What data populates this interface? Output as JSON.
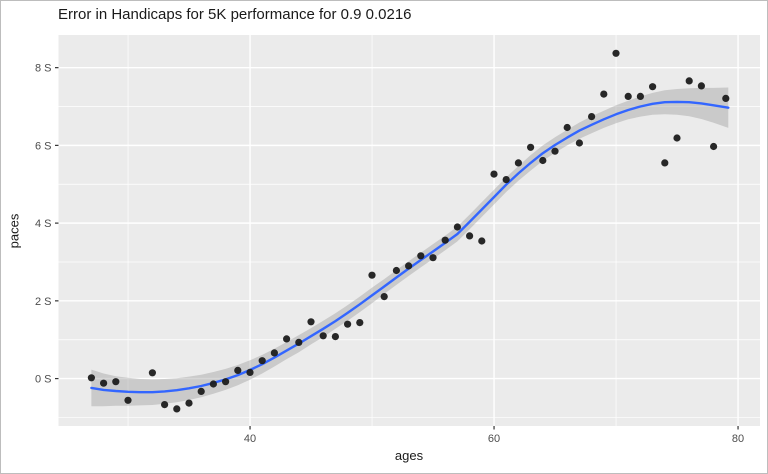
{
  "chart": {
    "title": "Error in Handicaps for 5K performance for 0.9 0.0216",
    "xlabel": "ages",
    "ylabel": "paces"
  },
  "chart_data": {
    "type": "scatter",
    "title": "Error in Handicaps for 5K performance for 0.9 0.0216",
    "xlabel": "ages",
    "ylabel": "paces",
    "grid": "on",
    "legend": "none",
    "x_domain": [
      24.3,
      81.8
    ],
    "y_domain": [
      -1.22,
      8.84
    ],
    "x_ticks": [
      {
        "value": 40,
        "label": "40"
      },
      {
        "value": 60,
        "label": "60"
      },
      {
        "value": 80,
        "label": "80"
      }
    ],
    "y_ticks": [
      {
        "value": 0,
        "label": "0 S"
      },
      {
        "value": 2,
        "label": "2 S"
      },
      {
        "value": 4,
        "label": "4 S"
      },
      {
        "value": 6,
        "label": "6 S"
      },
      {
        "value": 8,
        "label": "8 S"
      }
    ],
    "x_minor_gridlines": [
      30,
      50,
      70
    ],
    "y_minor_gridlines": [
      -1,
      1,
      3,
      5,
      7
    ],
    "points": {
      "ages": [
        27,
        28,
        29,
        30,
        32,
        33,
        34,
        35,
        36,
        37,
        38,
        39,
        40,
        41,
        42,
        43,
        44,
        45,
        46,
        47,
        48,
        49,
        50,
        51,
        52,
        53,
        54,
        55,
        56,
        57,
        58,
        59,
        60,
        61,
        62,
        63,
        64,
        65,
        66,
        67,
        68,
        69,
        70,
        71,
        72,
        73,
        74,
        75,
        76,
        77,
        78,
        79
      ],
      "values": [
        0.02,
        -0.12,
        -0.08,
        -0.56,
        0.15,
        -0.67,
        -0.78,
        -0.63,
        -0.33,
        -0.14,
        -0.08,
        0.21,
        0.16,
        0.46,
        0.66,
        1.02,
        0.93,
        1.46,
        1.1,
        1.08,
        1.4,
        1.44,
        2.66,
        2.11,
        2.78,
        2.9,
        3.16,
        3.11,
        3.56,
        3.9,
        3.67,
        3.54,
        5.26,
        5.12,
        5.55,
        5.95,
        5.61,
        5.85,
        6.46,
        6.06,
        6.74,
        7.32,
        8.37,
        7.26,
        7.26,
        7.51,
        5.55,
        6.19,
        7.66,
        7.53,
        5.97,
        7.21
      ]
    },
    "smooth": {
      "comment_columns": [
        "age",
        "fit",
        "ci_halfwidth"
      ],
      "samples": [
        [
          27,
          -0.24,
          0.47
        ],
        [
          28,
          -0.29,
          0.42
        ],
        [
          29,
          -0.32,
          0.38
        ],
        [
          30,
          -0.34,
          0.36
        ],
        [
          31,
          -0.35,
          0.34
        ],
        [
          32,
          -0.35,
          0.33
        ],
        [
          33,
          -0.33,
          0.32
        ],
        [
          34,
          -0.3,
          0.31
        ],
        [
          35,
          -0.25,
          0.3
        ],
        [
          36,
          -0.19,
          0.29
        ],
        [
          37,
          -0.11,
          0.28
        ],
        [
          38,
          -0.02,
          0.27
        ],
        [
          39,
          0.09,
          0.26
        ],
        [
          40,
          0.22,
          0.25
        ],
        [
          41,
          0.37,
          0.24
        ],
        [
          42,
          0.54,
          0.23
        ],
        [
          43,
          0.72,
          0.22
        ],
        [
          44,
          0.9,
          0.22
        ],
        [
          45,
          1.09,
          0.21
        ],
        [
          46,
          1.28,
          0.21
        ],
        [
          47,
          1.48,
          0.2
        ],
        [
          48,
          1.69,
          0.2
        ],
        [
          49,
          1.91,
          0.2
        ],
        [
          50,
          2.14,
          0.2
        ],
        [
          51,
          2.37,
          0.19
        ],
        [
          52,
          2.6,
          0.19
        ],
        [
          53,
          2.83,
          0.19
        ],
        [
          54,
          3.05,
          0.19
        ],
        [
          55,
          3.27,
          0.19
        ],
        [
          56,
          3.49,
          0.19
        ],
        [
          57,
          3.72,
          0.19
        ],
        [
          58,
          4.03,
          0.19
        ],
        [
          59,
          4.35,
          0.19
        ],
        [
          60,
          4.67,
          0.19
        ],
        [
          61,
          4.99,
          0.19
        ],
        [
          62,
          5.28,
          0.19
        ],
        [
          63,
          5.55,
          0.2
        ],
        [
          64,
          5.8,
          0.2
        ],
        [
          65,
          6.01,
          0.2
        ],
        [
          66,
          6.2,
          0.2
        ],
        [
          67,
          6.38,
          0.21
        ],
        [
          68,
          6.53,
          0.22
        ],
        [
          69,
          6.67,
          0.22
        ],
        [
          70,
          6.8,
          0.23
        ],
        [
          71,
          6.91,
          0.24
        ],
        [
          72,
          7.0,
          0.26
        ],
        [
          73,
          7.07,
          0.28
        ],
        [
          74,
          7.11,
          0.31
        ],
        [
          75,
          7.12,
          0.33
        ],
        [
          76,
          7.11,
          0.36
        ],
        [
          77,
          7.08,
          0.4
        ],
        [
          78,
          7.03,
          0.45
        ],
        [
          79.2,
          6.97,
          0.52
        ]
      ]
    },
    "colors": {
      "panel_background": "#EBEBEB",
      "grid_major": "#FFFFFF",
      "grid_minor": "#FFFFFF",
      "smooth_line": "#3366FF",
      "ci_band": "#999999",
      "point": "#1C1C1C",
      "tick_mark": "#333333",
      "tick_label": "#4D4D4D"
    }
  }
}
